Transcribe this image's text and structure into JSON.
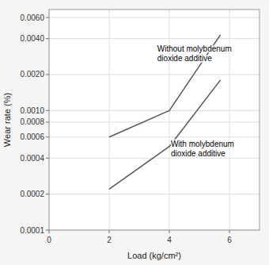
{
  "chart_data": {
    "type": "line",
    "xlabel": "Load (kg/cm²)",
    "ylabel": "Wear rate (%)",
    "x": [
      2.0,
      4.0,
      5.7
    ],
    "series": [
      {
        "color": "#555555",
        "values": [
          0.0006,
          0.001,
          0.0043
        ]
      },
      {
        "color": "#555555",
        "values": [
          0.00022,
          0.0005,
          0.0018
        ]
      }
    ],
    "xlim": [
      0,
      7
    ],
    "ylim": [
      0.0001,
      0.007
    ],
    "xticks": [
      0,
      2,
      4,
      6
    ],
    "yticks": [
      0.0001,
      0.0002,
      0.0004,
      0.0006,
      0.0008,
      {
        "value": 0.001,
        "label": "0.0010"
      },
      {
        "value": 0.002,
        "label": "0.0020"
      },
      {
        "value": 0.004,
        "label": "0.0040"
      },
      {
        "value": 0.006,
        "label": "0.0060"
      }
    ],
    "log": "y",
    "grid": true,
    "annotations": [
      {
        "text": "Without molybdenum\ndioxide additive",
        "x": 3.6,
        "y": 0.003
      },
      {
        "text": "With molybdenum\ndioxide additive",
        "x": 4.05,
        "y": 0.00048
      }
    ]
  }
}
